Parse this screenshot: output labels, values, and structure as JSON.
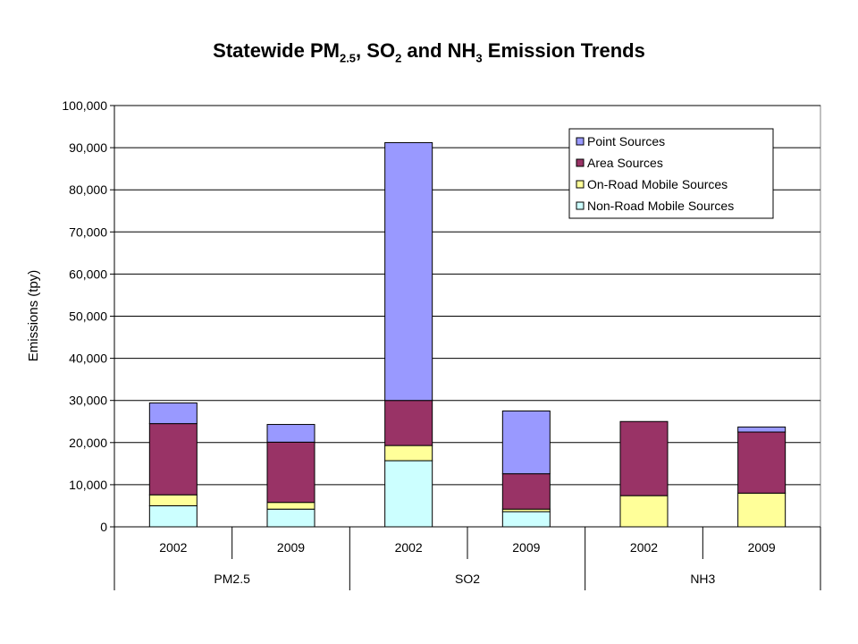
{
  "chart_data": {
    "type": "bar",
    "stacked": true,
    "title": {
      "parts": [
        {
          "text": "Statewide PM"
        },
        {
          "text": "2.5",
          "sub": true
        },
        {
          "text": ", SO"
        },
        {
          "text": "2",
          "sub": true
        },
        {
          "text": " and NH"
        },
        {
          "text": "3",
          "sub": true
        },
        {
          "text": " Emission Trends"
        }
      ]
    },
    "ylabel": "Emissions (tpy)",
    "xlabel": "",
    "ylim": [
      0,
      100000
    ],
    "yticks": [
      0,
      10000,
      20000,
      30000,
      40000,
      50000,
      60000,
      70000,
      80000,
      90000,
      100000
    ],
    "ytick_labels": [
      "0",
      "10,000",
      "20,000",
      "30,000",
      "40,000",
      "50,000",
      "60,000",
      "70,000",
      "80,000",
      "90,000",
      "100,000"
    ],
    "grid": true,
    "legend_position": "top-right",
    "categories": [
      "2002",
      "2009",
      "2002",
      "2009",
      "2002",
      "2009"
    ],
    "groups": [
      {
        "label": "PM2.5",
        "span": 2
      },
      {
        "label": "SO2",
        "span": 2
      },
      {
        "label": "NH3",
        "span": 2
      }
    ],
    "series": [
      {
        "name": "Non-Road Mobile Sources",
        "color": "#ccffff",
        "values": [
          5000,
          4200,
          15700,
          3600,
          0,
          0
        ]
      },
      {
        "name": "On-Road Mobile Sources",
        "color": "#ffff99",
        "values": [
          2600,
          1600,
          3600,
          600,
          7400,
          8000
        ]
      },
      {
        "name": "Area Sources",
        "color": "#993366",
        "values": [
          16900,
          14300,
          10700,
          8400,
          17600,
          14500
        ]
      },
      {
        "name": "Point Sources",
        "color": "#9999ff",
        "values": [
          4900,
          4200,
          61200,
          14900,
          0,
          1200
        ]
      }
    ],
    "legend_order": [
      3,
      2,
      1,
      0
    ],
    "colors": {
      "plot_background": "#ffffff",
      "gridline": "#000000",
      "bar_edge": "#000000"
    }
  }
}
